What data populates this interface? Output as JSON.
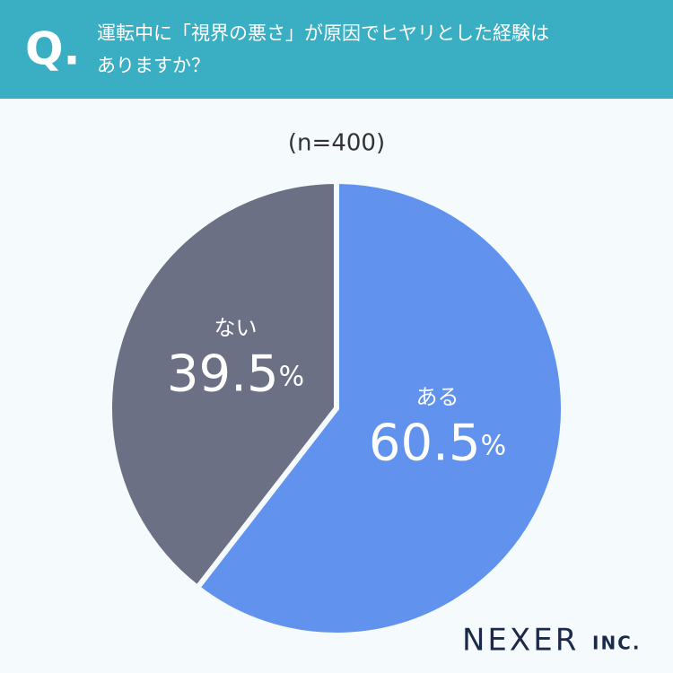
{
  "header": {
    "mark": "Q."
  },
  "chart_data": {
    "type": "pie",
    "title": [
      "運転中に「視界の悪さ」が原因でヒヤリとした経験は",
      "ありますか？"
    ],
    "subtitle": "(n=400)",
    "categories": [
      "ある",
      "ない"
    ],
    "values": [
      60.5,
      39.5
    ],
    "value_labels": [
      "60.5%",
      "39.5%"
    ],
    "colors": [
      "#6092ee",
      "#6b7085"
    ]
  },
  "footer": {
    "logo": "NEXER",
    "logo_suffix": "INC."
  }
}
